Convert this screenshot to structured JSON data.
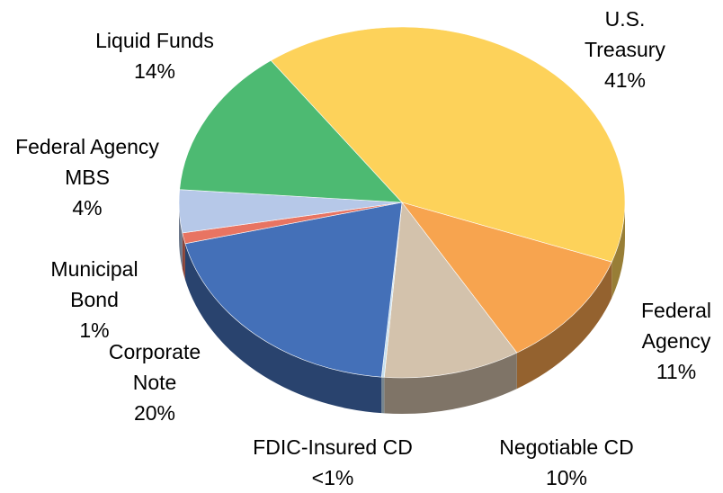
{
  "chart_data": {
    "type": "pie3d",
    "categories": [
      "U.S. Treasury",
      "Federal Agency",
      "Negotiable CD",
      "FDIC-Insured CD",
      "Corporate Note",
      "Municipal Bond",
      "Federal Agency MBS",
      "Liquid Funds"
    ],
    "values": [
      41,
      11,
      10,
      0.2,
      20,
      1,
      4,
      14
    ],
    "value_labels": [
      "41%",
      "11%",
      "10%",
      "<1%",
      "20%",
      "1%",
      "4%",
      "14%"
    ],
    "colors": [
      "#fdd25a",
      "#f7a44f",
      "#d3c2ac",
      "#c6e0ee",
      "#4470b8",
      "#e87462",
      "#b6c8e8",
      "#4dba72"
    ]
  }
}
